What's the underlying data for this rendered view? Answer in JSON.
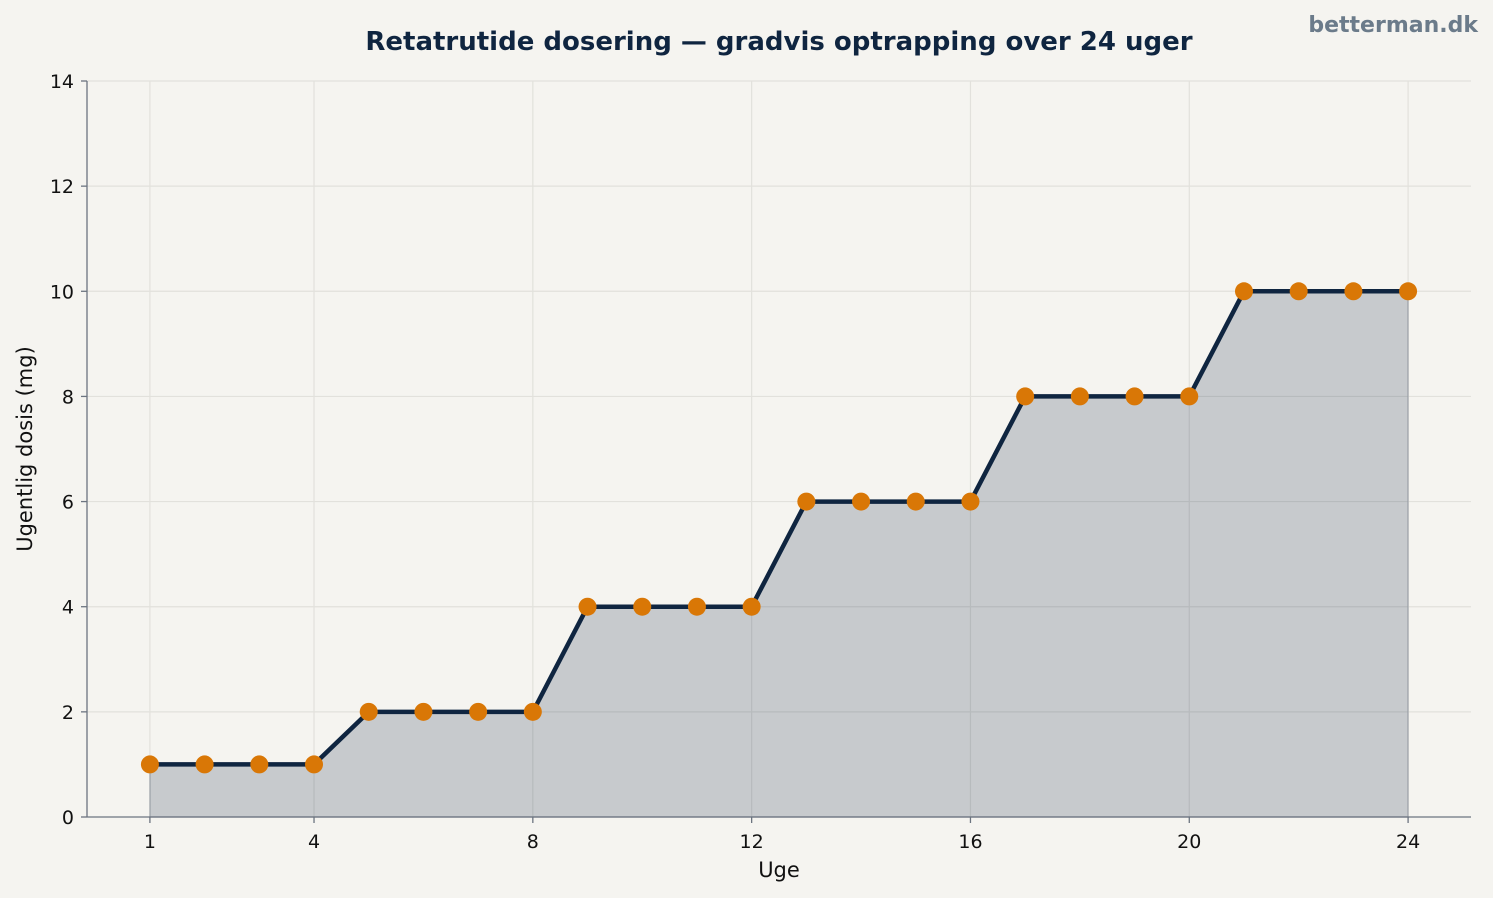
{
  "watermark": "betterman.dk",
  "colors": {
    "background": "#f5f4f0",
    "line": "#0f2540",
    "marker": "#d97706",
    "fill": "#0f2540",
    "grid": "#e2e1dc"
  },
  "chart_data": {
    "type": "area",
    "title": "Retatrutide dosering — gradvis optrapping over 24 uger",
    "xlabel": "Uge",
    "ylabel": "Ugentlig dosis (mg)",
    "x": [
      1,
      2,
      3,
      4,
      5,
      6,
      7,
      8,
      9,
      10,
      11,
      12,
      13,
      14,
      15,
      16,
      17,
      18,
      19,
      20,
      21,
      22,
      23,
      24
    ],
    "values": [
      1,
      1,
      1,
      1,
      2,
      2,
      2,
      2,
      4,
      4,
      4,
      4,
      6,
      6,
      6,
      6,
      8,
      8,
      8,
      8,
      10,
      10,
      10,
      10
    ],
    "xlim": [
      -0.15,
      25.15
    ],
    "ylim": [
      0,
      14
    ],
    "xticks": [
      1,
      4,
      8,
      12,
      16,
      20,
      24
    ],
    "yticks": [
      0,
      2,
      4,
      6,
      8,
      10,
      12,
      14
    ],
    "grid": true,
    "legend": "none"
  }
}
